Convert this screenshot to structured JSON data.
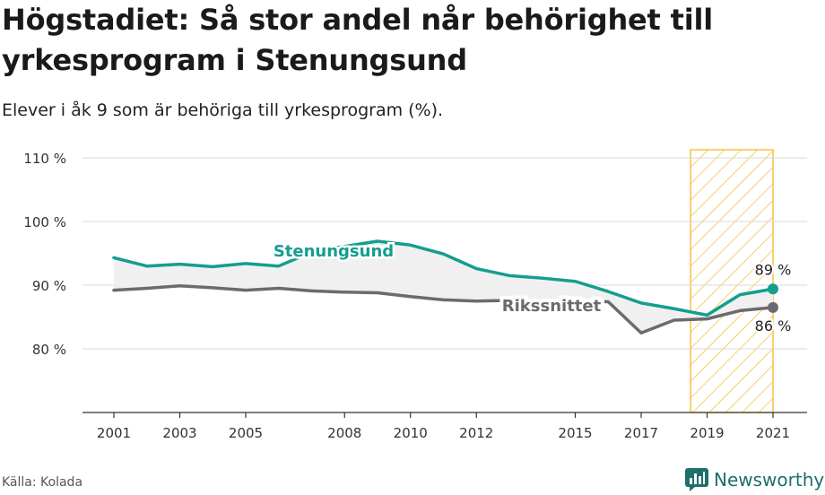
{
  "title": "Högstadiet: Så stor andel når behörighet till yrkesprogram i Stenungsund",
  "subtitle": "Elever i åk 9 som är behöriga till yrkesprogram (%).",
  "source": "Källa: Kolada",
  "brand": "Newsworthy",
  "colors": {
    "stenungsund": "#139e8e",
    "riket": "#6b6a70",
    "highlight": "#f5c242",
    "fill": "#f0f0f0",
    "grid": "#d9d9d9"
  },
  "chart_data": {
    "type": "line",
    "ylim": [
      70,
      110
    ],
    "xlim": [
      2000,
      2022
    ],
    "yticks": [
      80,
      90,
      100,
      110
    ],
    "ytick_labels": [
      "80 %",
      "90 %",
      "100 %",
      "110 %"
    ],
    "xticks": [
      2001,
      2003,
      2005,
      2008,
      2010,
      2012,
      2015,
      2017,
      2019,
      2021
    ],
    "xtick_labels": [
      "2001",
      "2003",
      "2005",
      "2008",
      "2010",
      "2012",
      "2015",
      "2017",
      "2019",
      "2021"
    ],
    "highlight_range": [
      2018.5,
      2021
    ],
    "grid": true,
    "series": [
      {
        "name": "Stenungsund",
        "x": [
          2001,
          2002,
          2003,
          2004,
          2005,
          2006,
          2007,
          2008,
          2009,
          2010,
          2011,
          2012,
          2013,
          2014,
          2015,
          2016,
          2017,
          2018,
          2019,
          2020,
          2021
        ],
        "values": [
          94.3,
          93.0,
          93.3,
          92.9,
          93.4,
          93.0,
          95.2,
          96.1,
          96.9,
          96.3,
          94.9,
          92.6,
          91.5,
          91.1,
          90.6,
          89.0,
          87.2,
          86.3,
          85.3,
          88.5,
          89.4
        ],
        "end_label": "89 %"
      },
      {
        "name": "Rikssnittet",
        "x": [
          2001,
          2002,
          2003,
          2004,
          2005,
          2006,
          2007,
          2008,
          2009,
          2010,
          2011,
          2012,
          2013,
          2014,
          2015,
          2016,
          2017,
          2018,
          2019,
          2020,
          2021
        ],
        "values": [
          89.2,
          89.5,
          89.9,
          89.6,
          89.2,
          89.5,
          89.1,
          88.9,
          88.8,
          88.2,
          87.7,
          87.5,
          87.6,
          87.5,
          87.5,
          87.4,
          82.5,
          84.5,
          84.7,
          86.0,
          86.5
        ],
        "end_label": "86 %"
      }
    ]
  }
}
